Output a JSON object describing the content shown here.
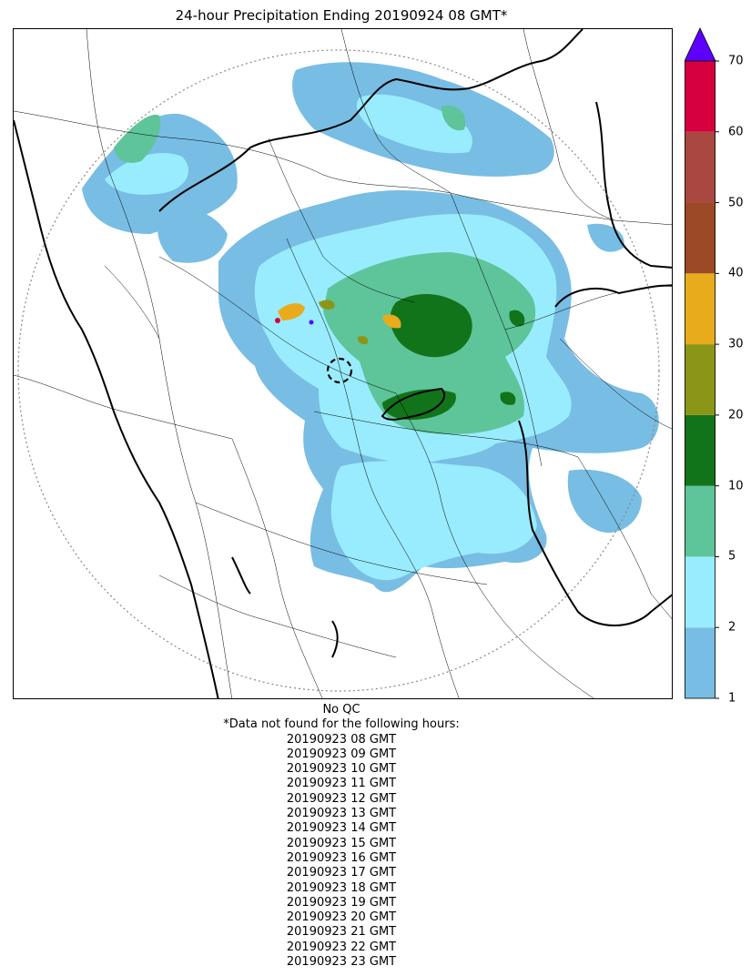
{
  "title": "24-hour Precipitation Ending 20190924 08 GMT*",
  "colorbar": {
    "ticks": [
      "1",
      "2",
      "5",
      "10",
      "20",
      "30",
      "40",
      "50",
      "60",
      "70"
    ],
    "bins": [
      {
        "from": 1,
        "to": 2,
        "color": "#78bde3"
      },
      {
        "from": 2,
        "to": 5,
        "color": "#99ecfd"
      },
      {
        "from": 5,
        "to": 10,
        "color": "#5ec49a"
      },
      {
        "from": 10,
        "to": 20,
        "color": "#11741a"
      },
      {
        "from": 20,
        "to": 30,
        "color": "#8b9618"
      },
      {
        "from": 30,
        "to": 40,
        "color": "#e8ab1c"
      },
      {
        "from": 40,
        "to": 50,
        "color": "#9b4a25"
      },
      {
        "from": 50,
        "to": 60,
        "color": "#a84841"
      },
      {
        "from": 60,
        "to": 70,
        "color": "#d6003f"
      }
    ],
    "over_color": "#5c00ff"
  },
  "notes": {
    "qc": "No QC",
    "missing_header": "*Data not found for the following hours:",
    "missing_hours": [
      "20190923 08 GMT",
      "20190923 09 GMT",
      "20190923 10 GMT",
      "20190923 11 GMT",
      "20190923 12 GMT",
      "20190923 13 GMT",
      "20190923 14 GMT",
      "20190923 15 GMT",
      "20190923 16 GMT",
      "20190923 17 GMT",
      "20190923 18 GMT",
      "20190923 19 GMT",
      "20190923 20 GMT",
      "20190923 21 GMT",
      "20190923 22 GMT",
      "20190923 23 GMT"
    ]
  }
}
